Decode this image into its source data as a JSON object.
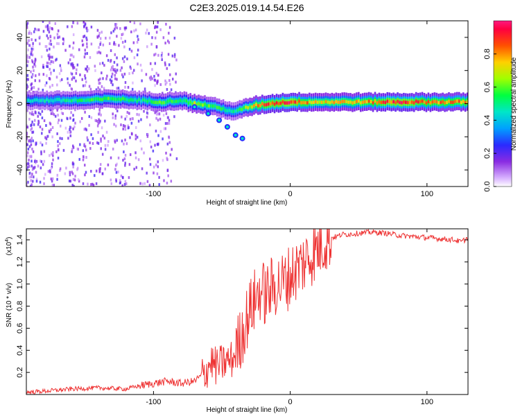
{
  "title": "C2E3.2025.019.14.54.E26",
  "chart_data": [
    {
      "type": "heatmap",
      "title": "C2E3.2025.019.14.54.E26",
      "xlabel": "Height of straight line (km)",
      "ylabel": "Frequency (Hz)",
      "xlim": [
        -193,
        130
      ],
      "ylim": [
        -50,
        50
      ],
      "xticks": [
        -100,
        0,
        100
      ],
      "yticks": [
        -40,
        -20,
        0,
        20,
        40
      ],
      "colorbar": {
        "label": "Normalized spectral amplitude",
        "range": [
          0,
          1
        ],
        "ticks": [
          0.0,
          0.2,
          0.4,
          0.6,
          0.8
        ],
        "tick_labels": [
          "0.0",
          "0.2",
          "0.4",
          "0.6",
          "0.8"
        ]
      },
      "ridge": {
        "description_points_x": [
          -190,
          -170,
          -150,
          -130,
          -110,
          -95,
          -80,
          -70,
          -60,
          -50,
          -40,
          -35,
          -25,
          -15,
          0,
          20,
          50,
          80,
          100,
          130
        ],
        "frequency": [
          2,
          2,
          2,
          3,
          2,
          1,
          2,
          0,
          -1,
          -3,
          -5,
          -3,
          -1,
          0,
          1,
          1,
          1,
          1,
          1,
          1
        ],
        "amplitude": [
          0.45,
          0.5,
          0.55,
          0.6,
          0.5,
          0.6,
          0.55,
          0.7,
          0.6,
          0.55,
          0.5,
          0.6,
          0.8,
          0.9,
          0.95,
          0.75,
          0.8,
          0.95,
          0.85,
          0.85
        ]
      },
      "branch": {
        "x": [
          -70,
          -60,
          -52,
          -46,
          -40,
          -35
        ],
        "frequency": [
          -2,
          -6,
          -10,
          -14,
          -19,
          -21
        ]
      }
    },
    {
      "type": "line",
      "xlabel": "Height of straight line (km)",
      "ylabel": "SNR (10 * v/v)",
      "ylabel_multiplier": "(x10",
      "ylabel_multiplier_exp": "4",
      "ylabel_multiplier_close": ")",
      "xlim": [
        -193,
        130
      ],
      "ylim": [
        0,
        1.5
      ],
      "xticks": [
        -100,
        0,
        100
      ],
      "yticks": [
        0.2,
        0.4,
        0.6,
        0.8,
        1.0,
        1.2,
        1.4
      ],
      "ytick_labels": [
        "0.2",
        "0.4",
        "0.6",
        "0.8",
        "1.0",
        "1.2",
        "1.4"
      ],
      "color": "#ee3333",
      "series": [
        {
          "name": "SNR",
          "x": [
            -193,
            -180,
            -160,
            -140,
            -120,
            -110,
            -100,
            -90,
            -80,
            -70,
            -62,
            -58,
            -54,
            -50,
            -46,
            -42,
            -38,
            -34,
            -30,
            -26,
            -22,
            -18,
            -14,
            -10,
            -6,
            -2,
            2,
            6,
            10,
            14,
            18,
            22,
            26,
            30,
            34,
            38,
            42,
            50,
            60,
            70,
            80,
            90,
            100,
            110,
            120,
            125,
            130
          ],
          "y": [
            0.02,
            0.03,
            0.05,
            0.06,
            0.05,
            0.08,
            0.1,
            0.12,
            0.1,
            0.12,
            0.2,
            0.3,
            0.25,
            0.28,
            0.3,
            0.32,
            0.45,
            0.6,
            0.75,
            0.85,
            0.95,
            0.9,
            0.95,
            1.0,
            1.0,
            1.05,
            1.1,
            1.15,
            1.2,
            1.25,
            1.3,
            1.35,
            1.4,
            1.42,
            1.43,
            1.45,
            1.45,
            1.46,
            1.47,
            1.46,
            1.44,
            1.43,
            1.42,
            1.41,
            1.4,
            1.38,
            1.42
          ]
        }
      ]
    }
  ]
}
